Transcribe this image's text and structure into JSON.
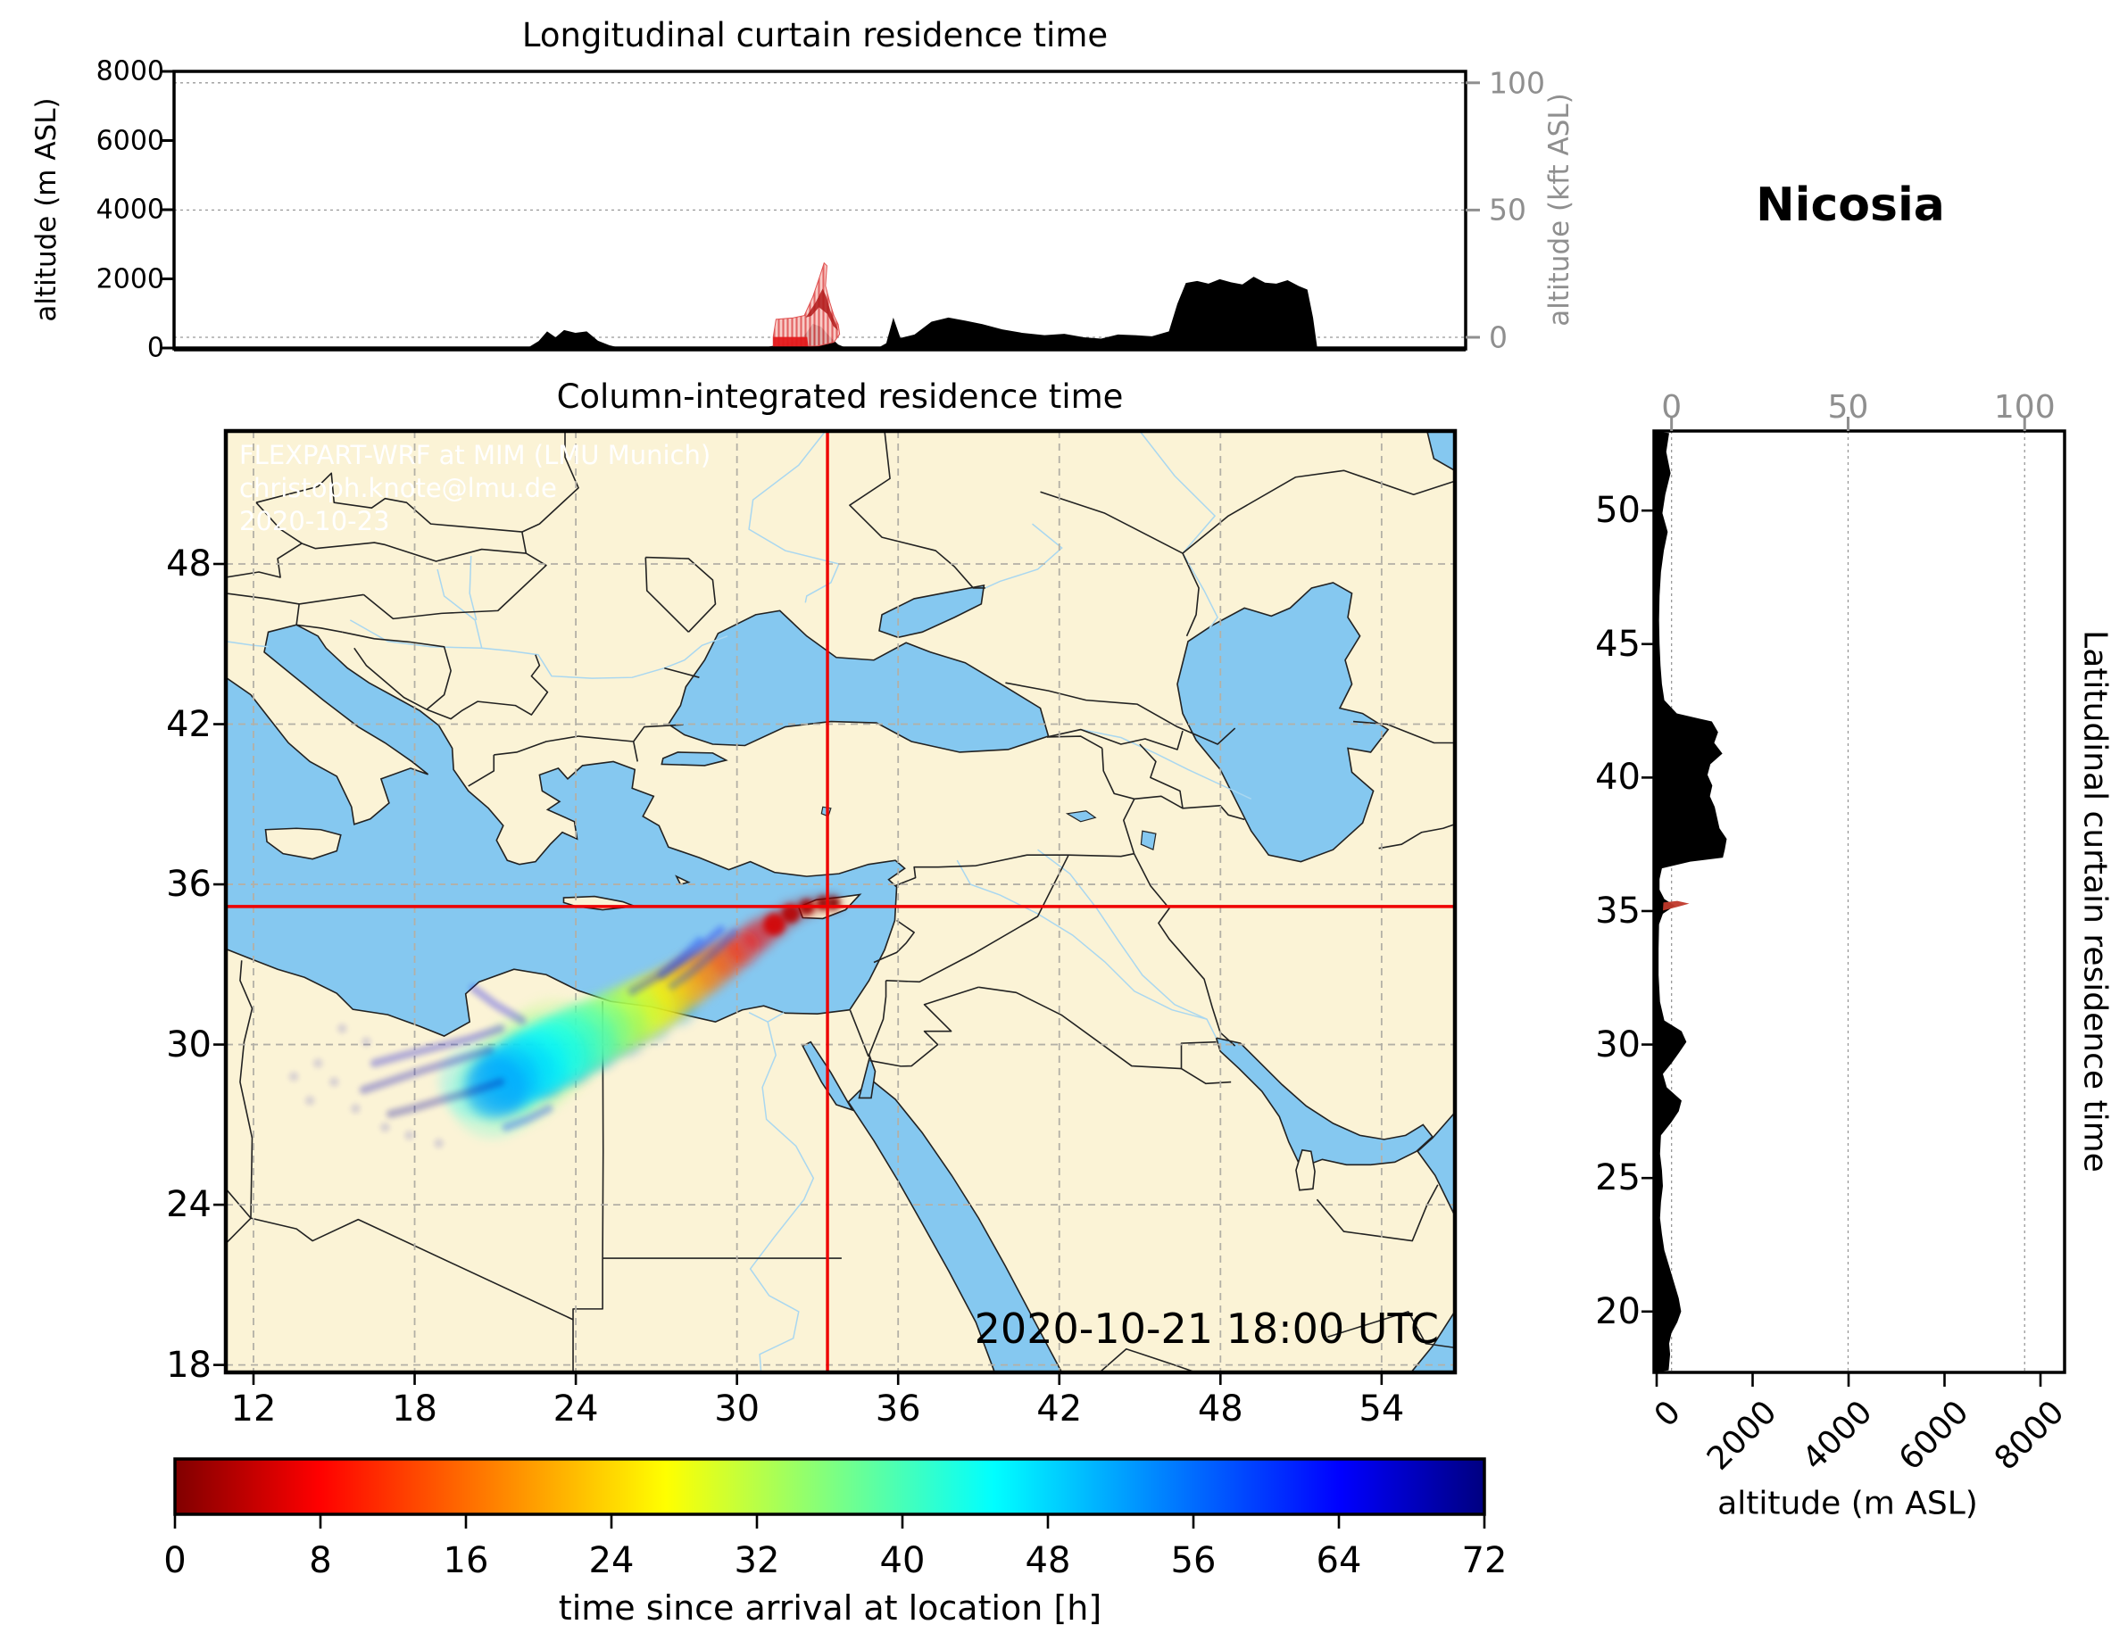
{
  "station": {
    "name": "Nicosia",
    "lon": 33.37,
    "lat": 35.17
  },
  "panels": {
    "longitudinal": {
      "title": "Longitudinal curtain residence time",
      "ylabel_left": "altitude (m ASL)",
      "ylabel_right": "altitude (kft ASL)"
    },
    "map": {
      "title": "Column-integrated residence time",
      "timestamp": "2020-10-21 18:00 UTC",
      "watermark_line1": "FLEXPART-WRF at MIM (LMU Munich)",
      "watermark_line2": "christoph.knote@lmu.de",
      "watermark_line3": "2020-10-23"
    },
    "latitudinal": {
      "title": "Latitudinal curtain residence time",
      "xlabel": "altitude (m ASL)"
    },
    "colorbar": {
      "label": "time since arrival at location [h]"
    }
  },
  "colors": {
    "water": "#85C8F0",
    "land": "#FBF3D6",
    "river": "#A9D7F0",
    "border": "#222222",
    "grid_map": "#b3b0a6",
    "grid_panel": "#999999",
    "axis_gray": "#8f8f8f",
    "crosshair": "#ee0000",
    "terrain": "#000000",
    "colorbar_stops": [
      "#800000",
      "#ff0000",
      "#ffff00",
      "#00ffff",
      "#0000ff",
      "#000080"
    ]
  },
  "axes": {
    "top_left_ticks": [
      0,
      2000,
      4000,
      6000,
      8000
    ],
    "top_right_ticks": [
      0,
      50,
      100
    ],
    "map_x_ticks": [
      12,
      18,
      24,
      30,
      36,
      42,
      48,
      54
    ],
    "map_y_ticks": [
      18,
      24,
      30,
      36,
      42,
      48
    ],
    "right_lat_ticks": [
      20,
      25,
      30,
      35,
      40,
      45,
      50
    ],
    "right_alt_ticks": [
      0,
      2000,
      4000,
      6000,
      8000
    ],
    "right_top_ticks": [
      0,
      50,
      100
    ],
    "colorbar_ticks": [
      0,
      8,
      16,
      24,
      32,
      40,
      48,
      56,
      64,
      72
    ]
  },
  "chart_data": [
    {
      "id": "longitudinal_curtain",
      "type": "area",
      "title": "Longitudinal curtain residence time",
      "xlabel": "longitude (deg E, unlabeled)",
      "ylabel": "altitude (m ASL)",
      "ylabel_right": "altitude (kft ASL)",
      "xlim": [
        11,
        56.7
      ],
      "ylim": [
        0,
        8000
      ],
      "yticks": [
        0,
        2000,
        4000,
        6000,
        8000
      ],
      "right_ticks_kft": [
        0,
        50,
        100
      ],
      "grid_alt_m": [
        310,
        3990,
        7670
      ],
      "terrain_profile_lon_m": [
        [
          11,
          0
        ],
        [
          23.5,
          0
        ],
        [
          23.9,
          200
        ],
        [
          24.2,
          480
        ],
        [
          24.5,
          310
        ],
        [
          24.8,
          520
        ],
        [
          25.2,
          440
        ],
        [
          25.6,
          480
        ],
        [
          26.0,
          210
        ],
        [
          26.4,
          80
        ],
        [
          26.8,
          0
        ],
        [
          31.8,
          0
        ],
        [
          32.1,
          50
        ],
        [
          32.5,
          110
        ],
        [
          32.9,
          190
        ],
        [
          33.3,
          360
        ],
        [
          33.6,
          700
        ],
        [
          33.9,
          610
        ],
        [
          34.2,
          330
        ],
        [
          34.5,
          100
        ],
        [
          34.8,
          0
        ],
        [
          35.9,
          0
        ],
        [
          36.2,
          140
        ],
        [
          36.45,
          880
        ],
        [
          36.7,
          290
        ],
        [
          37.2,
          390
        ],
        [
          37.8,
          760
        ],
        [
          38.4,
          880
        ],
        [
          39.0,
          790
        ],
        [
          39.6,
          690
        ],
        [
          40.3,
          540
        ],
        [
          41.0,
          440
        ],
        [
          41.8,
          370
        ],
        [
          42.5,
          410
        ],
        [
          43.2,
          310
        ],
        [
          43.8,
          270
        ],
        [
          44.4,
          390
        ],
        [
          45.0,
          370
        ],
        [
          45.6,
          340
        ],
        [
          46.2,
          480
        ],
        [
          46.5,
          1280
        ],
        [
          46.8,
          1880
        ],
        [
          47.2,
          1940
        ],
        [
          47.6,
          1860
        ],
        [
          48.0,
          1990
        ],
        [
          48.4,
          1900
        ],
        [
          48.8,
          1840
        ],
        [
          49.2,
          2060
        ],
        [
          49.6,
          1890
        ],
        [
          50.0,
          1860
        ],
        [
          50.4,
          1960
        ],
        [
          50.8,
          1790
        ],
        [
          51.1,
          1690
        ],
        [
          51.3,
          880
        ],
        [
          51.45,
          0
        ],
        [
          56.7,
          0
        ]
      ],
      "plume_outline_lon_m": [
        [
          32.2,
          0
        ],
        [
          32.2,
          320
        ],
        [
          32.3,
          830
        ],
        [
          32.9,
          870
        ],
        [
          33.3,
          940
        ],
        [
          33.6,
          1480
        ],
        [
          33.85,
          2080
        ],
        [
          34.0,
          2460
        ],
        [
          34.1,
          2380
        ],
        [
          34.05,
          1800
        ],
        [
          34.2,
          1330
        ],
        [
          34.35,
          930
        ],
        [
          34.5,
          680
        ],
        [
          34.55,
          400
        ],
        [
          34.35,
          170
        ],
        [
          33.8,
          60
        ],
        [
          32.9,
          30
        ],
        [
          32.5,
          0
        ]
      ],
      "plume_streak_lon_m": [
        [
          33.35,
          880
        ],
        [
          33.7,
          1320
        ],
        [
          33.95,
          1720
        ],
        [
          34.08,
          1480
        ],
        [
          34.22,
          1080
        ],
        [
          34.38,
          780
        ],
        [
          34.5,
          500
        ],
        [
          34.32,
          640
        ],
        [
          34.12,
          980
        ],
        [
          33.82,
          1180
        ],
        [
          33.55,
          930
        ]
      ],
      "plume_base_lon_m": [
        [
          32.2,
          0
        ],
        [
          32.2,
          320
        ],
        [
          33.4,
          320
        ],
        [
          33.45,
          0
        ]
      ]
    },
    {
      "id": "map_column_integrated",
      "type": "heatmap",
      "title": "Column-integrated residence time",
      "extent_lonlat": [
        10.97,
        56.73,
        17.72,
        52.98
      ],
      "gridlines_lon": [
        12,
        18,
        24,
        30,
        36,
        42,
        48,
        54
      ],
      "gridlines_lat": [
        18,
        24,
        30,
        36,
        42,
        48
      ],
      "station_marker": {
        "lon": 33.37,
        "lat": 35.17
      },
      "timestamp": "2020-10-21 18:00 UTC",
      "plume_track_lon_lat_age_r": [
        [
          33.6,
          35.3,
          0,
          0.28
        ],
        [
          33.2,
          35.3,
          1,
          0.3
        ],
        [
          32.6,
          35.15,
          2,
          0.35
        ],
        [
          32.0,
          34.9,
          4,
          0.42
        ],
        [
          31.4,
          34.5,
          6,
          0.5
        ],
        [
          30.8,
          34.1,
          8,
          0.58
        ],
        [
          30.2,
          33.65,
          10,
          0.65
        ],
        [
          29.6,
          33.25,
          13,
          0.72
        ],
        [
          29.0,
          32.85,
          16,
          0.8
        ],
        [
          28.4,
          32.5,
          19,
          0.88
        ],
        [
          27.8,
          32.1,
          22,
          0.95
        ],
        [
          27.2,
          31.75,
          25,
          1.02
        ],
        [
          26.6,
          31.4,
          28,
          1.1
        ],
        [
          26.0,
          31.1,
          31,
          1.15
        ],
        [
          25.4,
          30.8,
          34,
          1.2
        ],
        [
          24.8,
          30.5,
          37,
          1.25
        ],
        [
          24.2,
          30.2,
          40,
          1.3
        ],
        [
          23.6,
          29.9,
          42,
          1.32
        ],
        [
          23.0,
          29.6,
          44,
          1.32
        ],
        [
          22.4,
          29.3,
          46,
          1.3
        ],
        [
          21.9,
          29.0,
          48,
          1.28
        ],
        [
          21.4,
          28.7,
          50,
          1.22
        ],
        [
          21.0,
          28.4,
          52,
          1.15
        ]
      ],
      "plume_halo_lon_lat_age_r": [
        [
          23.2,
          29.9,
          34,
          1.8
        ],
        [
          22.3,
          29.3,
          36,
          1.9
        ],
        [
          21.6,
          28.7,
          38,
          1.85
        ],
        [
          20.9,
          28.1,
          42,
          1.6
        ],
        [
          20.3,
          28.6,
          46,
          1.4
        ]
      ],
      "plume_south_edge_lon_lat_age_r": [
        [
          27.8,
          31.4,
          52,
          0.65
        ],
        [
          26.8,
          30.9,
          54,
          0.75
        ],
        [
          25.8,
          30.4,
          56,
          0.8
        ],
        [
          24.8,
          29.9,
          57,
          0.8
        ],
        [
          23.8,
          29.4,
          58,
          0.85
        ],
        [
          22.8,
          28.9,
          58,
          0.85
        ]
      ],
      "filaments": [
        {
          "age_h": 58,
          "points": [
            [
              29.9,
              34.2
            ],
            [
              29.1,
              33.4
            ],
            [
              28.3,
              32.7
            ],
            [
              27.6,
              32.2
            ]
          ]
        },
        {
          "age_h": 62,
          "points": [
            [
              29.4,
              34.3
            ],
            [
              28.5,
              33.5
            ],
            [
              27.6,
              32.9
            ],
            [
              26.8,
              32.4
            ],
            [
              26.1,
              32.0
            ]
          ]
        },
        {
          "age_h": 60,
          "points": [
            [
              28.6,
              33.9
            ],
            [
              27.9,
              33.2
            ],
            [
              27.2,
              32.6
            ]
          ]
        },
        {
          "age_h": 66,
          "points": [
            [
              21.2,
              30.6
            ],
            [
              20.0,
              30.2
            ],
            [
              18.8,
              29.9
            ],
            [
              17.6,
              29.6
            ],
            [
              16.5,
              29.3
            ]
          ]
        },
        {
          "age_h": 68,
          "points": [
            [
              20.8,
              29.8
            ],
            [
              19.5,
              29.4
            ],
            [
              18.2,
              29.0
            ],
            [
              17.0,
              28.6
            ],
            [
              16.1,
              28.3
            ]
          ]
        },
        {
          "age_h": 70,
          "points": [
            [
              21.2,
              28.6
            ],
            [
              20.0,
              28.2
            ],
            [
              18.9,
              27.9
            ],
            [
              17.9,
              27.6
            ],
            [
              17.1,
              27.4
            ]
          ]
        },
        {
          "age_h": 64,
          "points": [
            [
              22.0,
              30.9
            ],
            [
              21.0,
              31.5
            ],
            [
              20.2,
              32.1
            ]
          ]
        },
        {
          "age_h": 60,
          "points": [
            [
              23.0,
              27.6
            ],
            [
              22.2,
              27.2
            ],
            [
              21.4,
              26.9
            ]
          ]
        }
      ],
      "speckles_lon_lat": [
        [
          15.0,
          28.6
        ],
        [
          14.4,
          29.3
        ],
        [
          15.8,
          27.6
        ],
        [
          16.9,
          26.9
        ],
        [
          14.1,
          27.9
        ],
        [
          13.5,
          28.8
        ],
        [
          16.2,
          30.1
        ],
        [
          15.3,
          30.6
        ],
        [
          17.8,
          26.6
        ],
        [
          18.9,
          26.3
        ]
      ]
    },
    {
      "id": "latitudinal_curtain",
      "type": "area",
      "title": "Latitudinal curtain residence time",
      "xlabel": "altitude (m ASL)",
      "xlim": [
        0,
        8500
      ],
      "xticks": [
        0,
        2000,
        4000,
        6000,
        8000
      ],
      "top_ticks_kft": [
        0,
        50,
        100
      ],
      "grid_alt_m": [
        310,
        3990,
        7670
      ],
      "terrain_profile_lat_m": [
        [
          52.9,
          260
        ],
        [
          52.2,
          200
        ],
        [
          51.4,
          290
        ],
        [
          50.6,
          180
        ],
        [
          49.9,
          120
        ],
        [
          49.2,
          230
        ],
        [
          48.5,
          150
        ],
        [
          47.7,
          90
        ],
        [
          46.8,
          60
        ],
        [
          45.9,
          50
        ],
        [
          45.0,
          60
        ],
        [
          44.2,
          80
        ],
        [
          43.5,
          110
        ],
        [
          42.9,
          160
        ],
        [
          42.4,
          420
        ],
        [
          42.1,
          1150
        ],
        [
          41.7,
          1280
        ],
        [
          41.3,
          1200
        ],
        [
          40.9,
          1370
        ],
        [
          40.5,
          1120
        ],
        [
          40.1,
          1060
        ],
        [
          39.7,
          1160
        ],
        [
          39.3,
          1110
        ],
        [
          38.9,
          1210
        ],
        [
          38.5,
          1260
        ],
        [
          38.1,
          1310
        ],
        [
          37.7,
          1460
        ],
        [
          37.3,
          1420
        ],
        [
          37.0,
          1380
        ],
        [
          36.85,
          700
        ],
        [
          36.6,
          110
        ],
        [
          36.2,
          60
        ],
        [
          35.8,
          60
        ],
        [
          35.45,
          160
        ],
        [
          35.2,
          380
        ],
        [
          34.9,
          130
        ],
        [
          34.5,
          50
        ],
        [
          33.6,
          40
        ],
        [
          32.6,
          40
        ],
        [
          31.6,
          70
        ],
        [
          30.9,
          160
        ],
        [
          30.5,
          520
        ],
        [
          30.1,
          620
        ],
        [
          29.7,
          470
        ],
        [
          29.3,
          310
        ],
        [
          28.9,
          130
        ],
        [
          28.4,
          210
        ],
        [
          27.9,
          520
        ],
        [
          27.5,
          460
        ],
        [
          27.1,
          310
        ],
        [
          26.6,
          90
        ],
        [
          25.9,
          70
        ],
        [
          25.3,
          110
        ],
        [
          24.7,
          130
        ],
        [
          24.1,
          90
        ],
        [
          23.5,
          70
        ],
        [
          22.9,
          110
        ],
        [
          22.3,
          160
        ],
        [
          21.7,
          260
        ],
        [
          21.1,
          360
        ],
        [
          20.5,
          460
        ],
        [
          20.0,
          510
        ],
        [
          19.6,
          430
        ],
        [
          19.2,
          310
        ],
        [
          18.8,
          260
        ],
        [
          18.4,
          280
        ],
        [
          18.0,
          260
        ],
        [
          17.8,
          250
        ]
      ],
      "red_blob_m_lat": [
        [
          130,
          35.02
        ],
        [
          420,
          35.15
        ],
        [
          680,
          35.28
        ],
        [
          430,
          35.38
        ],
        [
          140,
          35.32
        ]
      ]
    },
    {
      "id": "colorbar",
      "type": "colorbar",
      "label": "time since arrival at location [h]",
      "ticks": [
        0,
        8,
        16,
        24,
        32,
        40,
        48,
        56,
        64,
        72
      ],
      "range_h": [
        0,
        72
      ],
      "colormap": "jet reversed (0 h = dark red, 72 h = dark blue)"
    }
  ]
}
